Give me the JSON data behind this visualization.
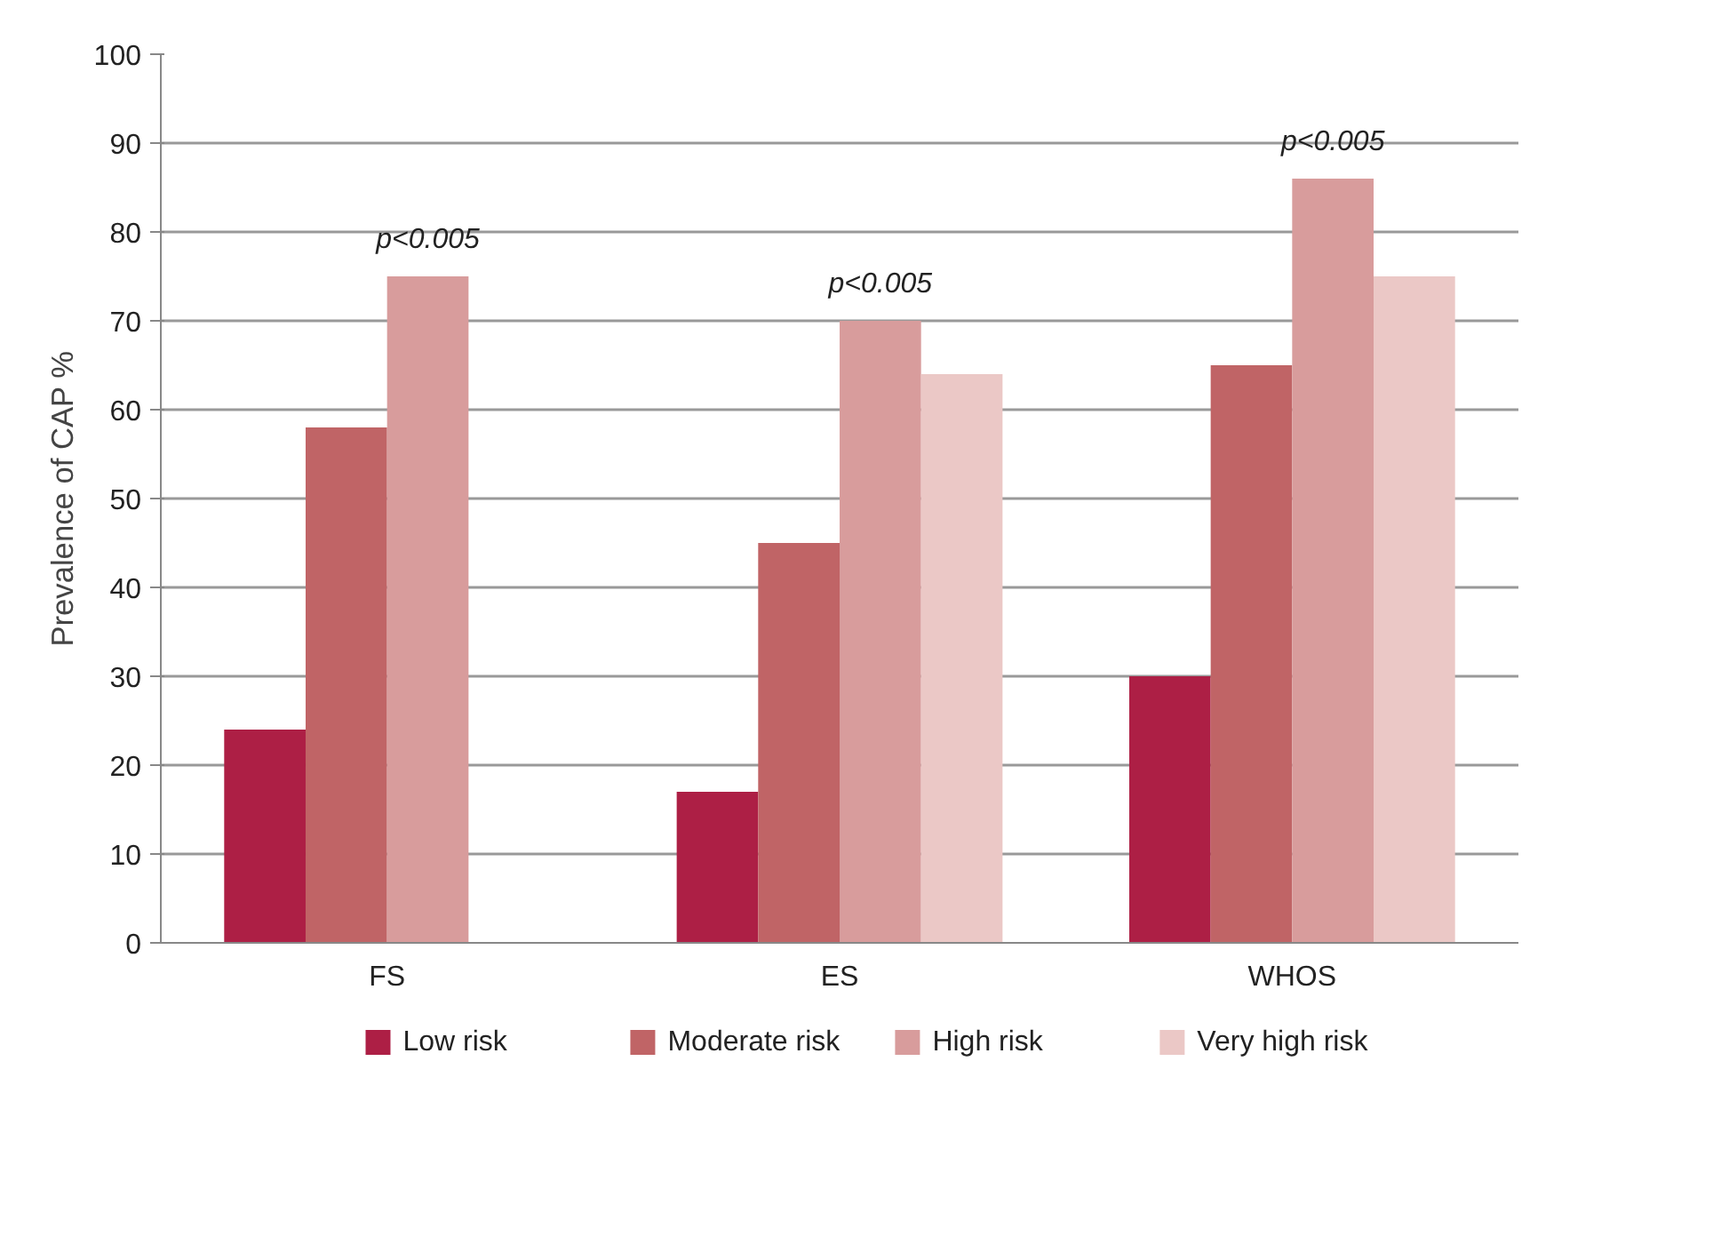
{
  "chart_data": {
    "type": "bar",
    "ylabel": "Prevalence of CAP %",
    "categories": [
      "FS",
      "ES",
      "WHOS"
    ],
    "series": [
      {
        "name": "Low risk",
        "color": "#ad1f45",
        "values": [
          24,
          17,
          30
        ]
      },
      {
        "name": "Moderate risk",
        "color": "#c06466",
        "values": [
          58,
          45,
          65
        ]
      },
      {
        "name": "High risk",
        "color": "#d89c9c",
        "values": [
          75,
          70,
          86
        ]
      },
      {
        "name": "Very high risk",
        "color": "#ebc8c6",
        "values": [
          null,
          64,
          75
        ]
      }
    ],
    "ylim": [
      0,
      100
    ],
    "yticks": [
      0,
      10,
      20,
      30,
      40,
      50,
      60,
      70,
      80,
      90,
      100
    ],
    "grid": "y",
    "legend": "bottom",
    "annotations": [
      "p<0.005",
      "p<0.005",
      "p<0.005"
    ]
  }
}
